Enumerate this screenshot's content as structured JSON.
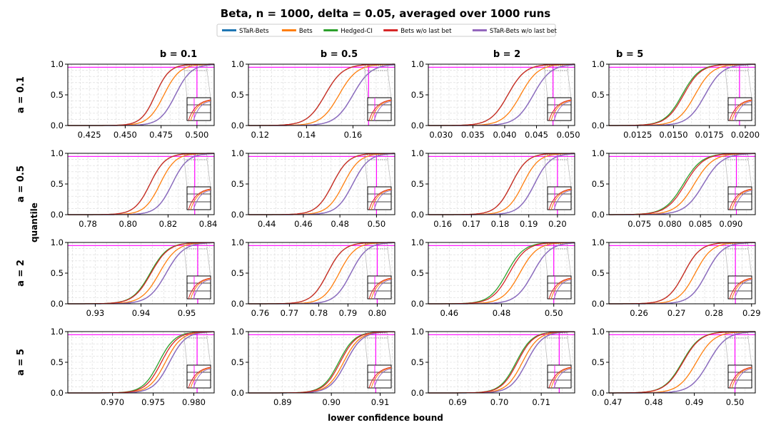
{
  "title": "Beta,  n = 1000,  delta = 0.05, averaged over 1000 runs",
  "xlabel": "lower confidence bound",
  "ylabel": "quantile",
  "legend": [
    {
      "label": "STaR-Bets",
      "color": "#1f77b4"
    },
    {
      "label": "Bets",
      "color": "#ff7f0e"
    },
    {
      "label": "Hedged-CI",
      "color": "#2ca02c"
    },
    {
      "label": "Bets w/o last bet",
      "color": "#d62728"
    },
    {
      "label": "STaR-Bets w/o last bet",
      "color": "#9467bd"
    }
  ],
  "colors": {
    "reference": "#ff00ff",
    "grid": "#d9d9d9",
    "inset_frame": "#000000"
  },
  "col_labels": [
    "b = 0.1",
    "b = 0.5",
    "b = 2",
    "b = 5"
  ],
  "row_labels": [
    "a = 0.1",
    "a = 0.5",
    "a = 2",
    "a = 5"
  ],
  "chart_data": {
    "type": "line",
    "description_kind": "empirical CDF of lower confidence bound",
    "y_range": [
      0,
      1
    ],
    "y_ticks": [
      "0.0",
      "0.5",
      "1.0"
    ],
    "reference_quantile": 0.95,
    "panels": [
      {
        "row": 0,
        "col": 0,
        "x_range": [
          0.41,
          0.512
        ],
        "x_ticks": [
          0.425,
          0.45,
          0.475,
          0.5
        ],
        "x_tick_labels": [
          "0.425",
          "0.450",
          "0.475",
          "0.500"
        ],
        "true_mean": 0.5,
        "series": {
          "STaR-Bets": [
            0.485,
            0.01
          ],
          "Bets": [
            0.477,
            0.01
          ],
          "Hedged-CI": [
            0.471,
            0.009
          ],
          "Bets w/o last bet": [
            0.471,
            0.009
          ],
          "STaR-Bets w/o last bet": [
            0.485,
            0.01
          ]
        }
      },
      {
        "row": 0,
        "col": 1,
        "x_range": [
          0.115,
          0.178
        ],
        "x_ticks": [
          0.12,
          0.14,
          0.16
        ],
        "x_tick_labels": [
          "0.12",
          "0.14",
          "0.16"
        ],
        "true_mean": 0.1667,
        "series": {
          "STaR-Bets": [
            0.16,
            0.007
          ],
          "Bets": [
            0.154,
            0.007
          ],
          "Hedged-CI": [
            0.148,
            0.007
          ],
          "Bets w/o last bet": [
            0.148,
            0.007
          ],
          "STaR-Bets w/o last bet": [
            0.16,
            0.007
          ]
        }
      },
      {
        "row": 0,
        "col": 2,
        "x_range": [
          0.028,
          0.051
        ],
        "x_ticks": [
          0.03,
          0.035,
          0.04,
          0.045,
          0.05
        ],
        "x_tick_labels": [
          "0.030",
          "0.035",
          "0.040",
          "0.045",
          "0.050"
        ],
        "true_mean": 0.0476,
        "series": {
          "STaR-Bets": [
            0.0445,
            0.0025
          ],
          "Bets": [
            0.0425,
            0.0025
          ],
          "Hedged-CI": [
            0.0405,
            0.0025
          ],
          "Bets w/o last bet": [
            0.0405,
            0.0025
          ],
          "STaR-Bets w/o last bet": [
            0.0445,
            0.0025
          ]
        }
      },
      {
        "row": 0,
        "col": 3,
        "x_range": [
          0.0105,
          0.0207
        ],
        "x_ticks": [
          0.0125,
          0.015,
          0.0175,
          0.02
        ],
        "x_tick_labels": [
          "0.0125",
          "0.0150",
          "0.0175",
          "0.0200"
        ],
        "true_mean": 0.0196,
        "series": {
          "STaR-Bets": [
            0.0172,
            0.0011
          ],
          "Bets": [
            0.0165,
            0.0011
          ],
          "Hedged-CI": [
            0.0156,
            0.0011
          ],
          "Bets w/o last bet": [
            0.0157,
            0.0011
          ],
          "STaR-Bets w/o last bet": [
            0.0172,
            0.0011
          ]
        }
      },
      {
        "row": 1,
        "col": 0,
        "x_range": [
          0.77,
          0.843
        ],
        "x_ticks": [
          0.78,
          0.8,
          0.82,
          0.84
        ],
        "x_tick_labels": [
          "0.78",
          "0.80",
          "0.82",
          "0.84"
        ],
        "true_mean": 0.8333,
        "series": {
          "STaR-Bets": [
            0.822,
            0.007
          ],
          "Bets": [
            0.816,
            0.007
          ],
          "Hedged-CI": [
            0.811,
            0.007
          ],
          "Bets w/o last bet": [
            0.811,
            0.007
          ],
          "STaR-Bets w/o last bet": [
            0.822,
            0.007
          ]
        }
      },
      {
        "row": 1,
        "col": 1,
        "x_range": [
          0.43,
          0.51
        ],
        "x_ticks": [
          0.44,
          0.46,
          0.48,
          0.5
        ],
        "x_tick_labels": [
          "0.44",
          "0.46",
          "0.48",
          "0.50"
        ],
        "true_mean": 0.5,
        "series": {
          "STaR-Bets": [
            0.487,
            0.008
          ],
          "Bets": [
            0.482,
            0.008
          ],
          "Hedged-CI": [
            0.476,
            0.008
          ],
          "Bets w/o last bet": [
            0.476,
            0.008
          ],
          "STaR-Bets w/o last bet": [
            0.487,
            0.008
          ]
        }
      },
      {
        "row": 1,
        "col": 2,
        "x_range": [
          0.155,
          0.206
        ],
        "x_ticks": [
          0.16,
          0.17,
          0.18,
          0.19,
          0.2
        ],
        "x_tick_labels": [
          "0.16",
          "0.17",
          "0.18",
          "0.19",
          "0.20"
        ],
        "true_mean": 0.2,
        "series": {
          "STaR-Bets": [
            0.192,
            0.005
          ],
          "Bets": [
            0.188,
            0.005
          ],
          "Hedged-CI": [
            0.184,
            0.005
          ],
          "Bets w/o last bet": [
            0.184,
            0.005
          ],
          "STaR-Bets w/o last bet": [
            0.192,
            0.005
          ]
        }
      },
      {
        "row": 1,
        "col": 3,
        "x_range": [
          0.07,
          0.094
        ],
        "x_ticks": [
          0.075,
          0.08,
          0.085,
          0.09
        ],
        "x_tick_labels": [
          "0.075",
          "0.080",
          "0.085",
          "0.090"
        ],
        "true_mean": 0.0909,
        "series": {
          "STaR-Bets": [
            0.0855,
            0.0028
          ],
          "Bets": [
            0.084,
            0.0028
          ],
          "Hedged-CI": [
            0.0822,
            0.0028
          ],
          "Bets w/o last bet": [
            0.0825,
            0.0028
          ],
          "STaR-Bets w/o last bet": [
            0.0855,
            0.0028
          ]
        }
      },
      {
        "row": 2,
        "col": 0,
        "x_range": [
          0.924,
          0.956
        ],
        "x_ticks": [
          0.93,
          0.94,
          0.95
        ],
        "x_tick_labels": [
          "0.93",
          "0.94",
          "0.95"
        ],
        "true_mean": 0.9524,
        "series": {
          "STaR-Bets": [
            0.9455,
            0.0035
          ],
          "Bets": [
            0.944,
            0.0035
          ],
          "Hedged-CI": [
            0.942,
            0.0035
          ],
          "Bets w/o last bet": [
            0.9422,
            0.0035
          ],
          "STaR-Bets w/o last bet": [
            0.9455,
            0.0035
          ]
        }
      },
      {
        "row": 2,
        "col": 1,
        "x_range": [
          0.756,
          0.806
        ],
        "x_ticks": [
          0.76,
          0.77,
          0.78,
          0.79,
          0.8
        ],
        "x_tick_labels": [
          "0.76",
          "0.77",
          "0.78",
          "0.79",
          "0.80"
        ],
        "true_mean": 0.8,
        "series": {
          "STaR-Bets": [
            0.791,
            0.005
          ],
          "Bets": [
            0.787,
            0.005
          ],
          "Hedged-CI": [
            0.783,
            0.005
          ],
          "Bets w/o last bet": [
            0.783,
            0.005
          ],
          "STaR-Bets w/o last bet": [
            0.791,
            0.005
          ]
        }
      },
      {
        "row": 2,
        "col": 2,
        "x_range": [
          0.452,
          0.508
        ],
        "x_ticks": [
          0.46,
          0.48,
          0.5
        ],
        "x_tick_labels": [
          "0.46",
          "0.48",
          "0.50"
        ],
        "true_mean": 0.5,
        "series": {
          "STaR-Bets": [
            0.492,
            0.006
          ],
          "Bets": [
            0.487,
            0.006
          ],
          "Hedged-CI": [
            0.482,
            0.006
          ],
          "Bets w/o last bet": [
            0.483,
            0.006
          ],
          "STaR-Bets w/o last bet": [
            0.492,
            0.006
          ]
        }
      },
      {
        "row": 2,
        "col": 3,
        "x_range": [
          0.252,
          0.291
        ],
        "x_ticks": [
          0.26,
          0.27,
          0.28,
          0.29
        ],
        "x_tick_labels": [
          "0.26",
          "0.27",
          "0.28",
          "0.29"
        ],
        "true_mean": 0.2857,
        "series": {
          "STaR-Bets": [
            0.278,
            0.004
          ],
          "Bets": [
            0.275,
            0.004
          ],
          "Hedged-CI": [
            0.272,
            0.004
          ],
          "Bets w/o last bet": [
            0.272,
            0.004
          ],
          "STaR-Bets w/o last bet": [
            0.278,
            0.004
          ]
        }
      },
      {
        "row": 3,
        "col": 0,
        "x_range": [
          0.9645,
          0.9825
        ],
        "x_ticks": [
          0.97,
          0.975,
          0.98
        ],
        "x_tick_labels": [
          "0.970",
          "0.975",
          "0.980"
        ],
        "true_mean": 0.9804,
        "series": {
          "STaR-Bets": [
            0.977,
            0.0018
          ],
          "Bets": [
            0.9765,
            0.0018
          ],
          "Hedged-CI": [
            0.9757,
            0.0018
          ],
          "Bets w/o last bet": [
            0.976,
            0.0018
          ],
          "STaR-Bets w/o last bet": [
            0.977,
            0.0018
          ]
        }
      },
      {
        "row": 3,
        "col": 1,
        "x_range": [
          0.883,
          0.913
        ],
        "x_ticks": [
          0.89,
          0.9,
          0.91
        ],
        "x_tick_labels": [
          "0.89",
          "0.90",
          "0.91"
        ],
        "true_mean": 0.9091,
        "series": {
          "STaR-Bets": [
            0.903,
            0.003
          ],
          "Bets": [
            0.9025,
            0.003
          ],
          "Hedged-CI": [
            0.9015,
            0.003
          ],
          "Bets w/o last bet": [
            0.9018,
            0.003
          ],
          "STaR-Bets w/o last bet": [
            0.903,
            0.003
          ]
        }
      },
      {
        "row": 3,
        "col": 2,
        "x_range": [
          0.683,
          0.718
        ],
        "x_ticks": [
          0.69,
          0.7,
          0.71
        ],
        "x_tick_labels": [
          "0.69",
          "0.70",
          "0.71"
        ],
        "true_mean": 0.7143,
        "series": {
          "STaR-Bets": [
            0.7065,
            0.0035
          ],
          "Bets": [
            0.7055,
            0.0035
          ],
          "Hedged-CI": [
            0.704,
            0.0035
          ],
          "Bets w/o last bet": [
            0.7043,
            0.0035
          ],
          "STaR-Bets w/o last bet": [
            0.7065,
            0.0035
          ]
        }
      },
      {
        "row": 3,
        "col": 3,
        "x_range": [
          0.469,
          0.505
        ],
        "x_ticks": [
          0.47,
          0.48,
          0.49,
          0.5
        ],
        "x_tick_labels": [
          "0.47",
          "0.48",
          "0.49",
          "0.50"
        ],
        "true_mean": 0.5,
        "series": {
          "STaR-Bets": [
            0.4935,
            0.004
          ],
          "Bets": [
            0.4905,
            0.004
          ],
          "Hedged-CI": [
            0.487,
            0.004
          ],
          "Bets w/o last bet": [
            0.4872,
            0.004
          ],
          "STaR-Bets w/o last bet": [
            0.4935,
            0.004
          ]
        }
      }
    ],
    "series_param_meaning": "[median, spread] of each logistic-shaped CDF, in x data units"
  }
}
